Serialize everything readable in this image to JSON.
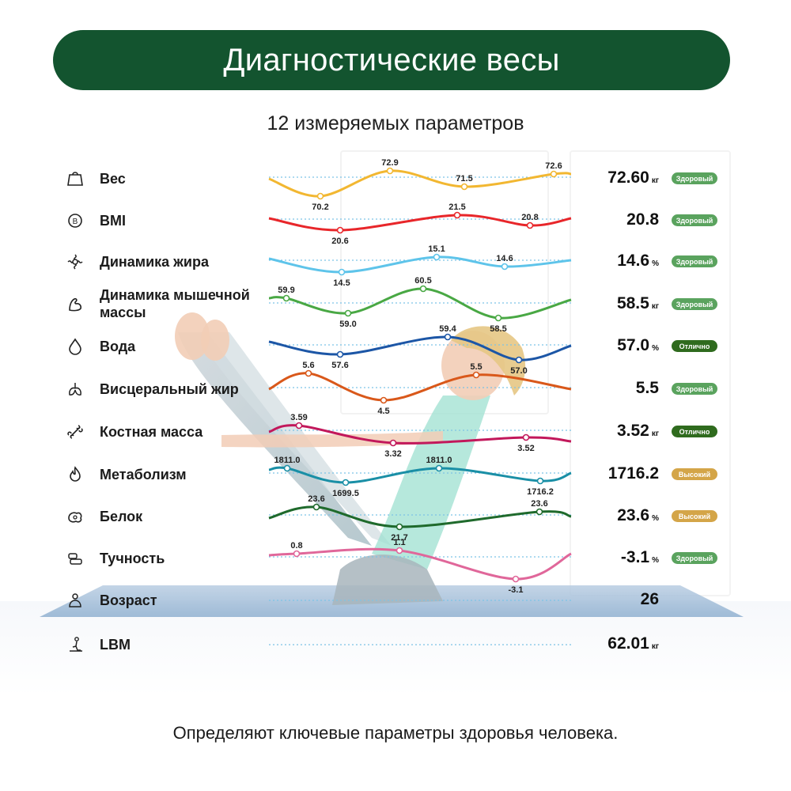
{
  "header": {
    "title": "Диагностические весы"
  },
  "subtitle": "12 измеряемых параметров",
  "footer": "Определяют ключевые параметры здоровья человека.",
  "colors": {
    "banner": "#13542f",
    "badge_healthy": "#5aa35e",
    "badge_excellent": "#2f6b1e",
    "badge_high": "#d4a548"
  },
  "metrics": [
    {
      "label": "Вес",
      "icon": "weight-icon",
      "value": "72.60",
      "unit": "кг",
      "status": "Здоровый",
      "status_type": "healthy",
      "color": "#f2b731",
      "points": [
        "70.2",
        "72.9",
        "71.5",
        "72.6"
      ]
    },
    {
      "label": "BMI",
      "icon": "bmi-icon",
      "value": "20.8",
      "unit": "",
      "status": "Здоровый",
      "status_type": "healthy",
      "color": "#e8262a",
      "points": [
        "20.6",
        "21.5",
        "20.8"
      ]
    },
    {
      "label": "Динамика жира",
      "icon": "fat-icon",
      "value": "14.6",
      "unit": "%",
      "status": "Здоровый",
      "status_type": "healthy",
      "color": "#5ec4ea",
      "points": [
        "14.5",
        "15.1",
        "14.6"
      ]
    },
    {
      "label": "Динамика мышечной массы",
      "icon": "muscle-icon",
      "value": "58.5",
      "unit": "кг",
      "status": "Здоровый",
      "status_type": "healthy",
      "color": "#49a844",
      "points": [
        "59.9",
        "59.0",
        "60.5",
        "58.5"
      ]
    },
    {
      "label": "Вода",
      "icon": "water-icon",
      "value": "57.0",
      "unit": "%",
      "status": "Отлично",
      "status_type": "excellent",
      "color": "#1c56a6",
      "points": [
        "57.6",
        "59.4",
        "57.0"
      ]
    },
    {
      "label": "Висцеральный жир",
      "icon": "visceral-fat-icon",
      "value": "5.5",
      "unit": "",
      "status": "Здоровый",
      "status_type": "healthy",
      "color": "#d9581a",
      "points": [
        "5.6",
        "4.5",
        "5.5"
      ]
    },
    {
      "label": "Костная масса",
      "icon": "bone-icon",
      "value": "3.52",
      "unit": "кг",
      "status": "Отлично",
      "status_type": "excellent",
      "color": "#c2185b",
      "points": [
        "3.59",
        "3.32",
        "3.52"
      ]
    },
    {
      "label": "Метаболизм",
      "icon": "metabolism-icon",
      "value": "1716.2",
      "unit": "",
      "status": "Высокий",
      "status_type": "high",
      "color": "#1a8fa6",
      "points": [
        "1811.0",
        "1699.5",
        "1811.0",
        "1716.2"
      ]
    },
    {
      "label": "Белок",
      "icon": "protein-icon",
      "value": "23.6",
      "unit": "%",
      "status": "Высокий",
      "status_type": "high",
      "color": "#1f6a2c",
      "points": [
        "23.6",
        "21.7",
        "23.6"
      ]
    },
    {
      "label": "Тучность",
      "icon": "obesity-icon",
      "value": "-3.1",
      "unit": "%",
      "status": "Здоровый",
      "status_type": "healthy",
      "color": "#e0679a",
      "points": [
        "0.8",
        "1.1",
        "-3.1"
      ]
    },
    {
      "label": "Возраст",
      "icon": "age-icon",
      "value": "26",
      "unit": "",
      "status": "",
      "status_type": "",
      "color": "",
      "points": []
    },
    {
      "label": "LBM",
      "icon": "lbm-icon",
      "value": "62.01",
      "unit": "кг",
      "status": "",
      "status_type": "",
      "color": "",
      "points": []
    }
  ]
}
